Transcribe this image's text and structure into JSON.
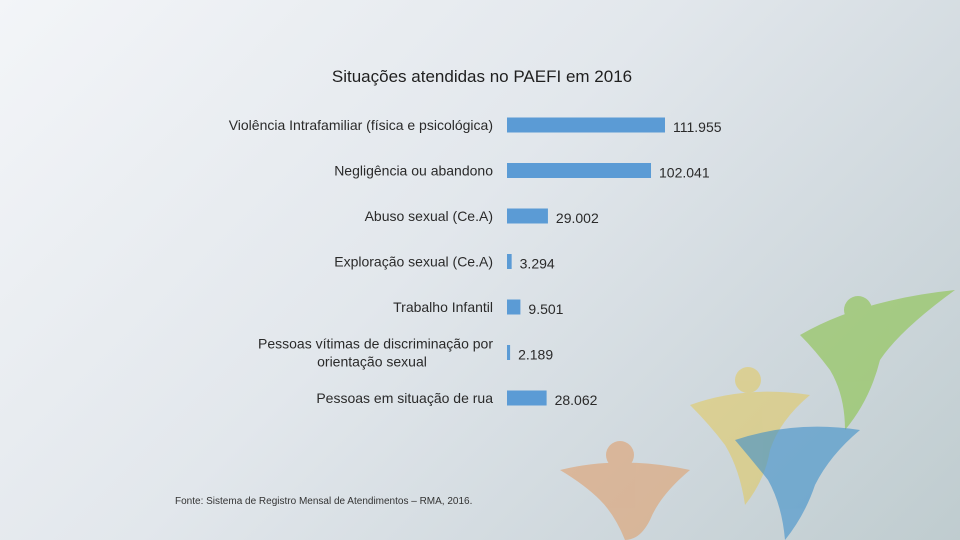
{
  "chart_data": {
    "type": "bar",
    "orientation": "horizontal",
    "title": "Situações atendidas no PAEFI em 2016",
    "categories": [
      [
        "Violência Intrafamiliar (física e psicológica)"
      ],
      [
        "Negligência ou abandono"
      ],
      [
        "Abuso sexual (Ce.A)"
      ],
      [
        "Exploração sexual (Ce.A)"
      ],
      [
        "Trabalho Infantil"
      ],
      [
        "Pessoas vítimas de discriminação por",
        "orientação sexual"
      ],
      [
        "Pessoas em situação de rua"
      ]
    ],
    "values": [
      111955,
      102041,
      29002,
      3294,
      9501,
      2189,
      28062
    ],
    "value_labels": [
      "111.955",
      "102.041",
      "29.002",
      "3.294",
      "9.501",
      "2.189",
      "28.062"
    ],
    "bar_color": "#5b9bd5",
    "xlim": [
      0,
      111955
    ],
    "grid": false,
    "legend": "none",
    "source": "Fonte: Sistema de Registro Mensal de Atendimentos – RMA, 2016."
  }
}
